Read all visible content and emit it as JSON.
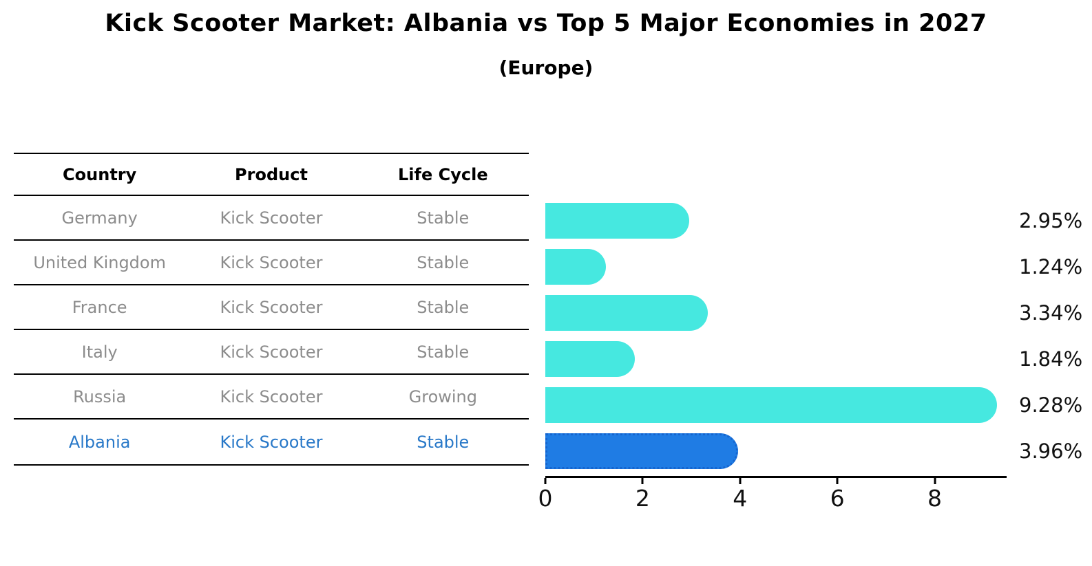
{
  "title": "Kick Scooter Market: Albania vs Top 5 Major Economies in 2027",
  "subtitle": "(Europe)",
  "table": {
    "headers": [
      "Country",
      "Product",
      "Life Cycle"
    ],
    "rows": [
      {
        "country": "Germany",
        "product": "Kick Scooter",
        "life_cycle": "Stable",
        "highlight": false
      },
      {
        "country": "United Kingdom",
        "product": "Kick Scooter",
        "life_cycle": "Stable",
        "highlight": false
      },
      {
        "country": "France",
        "product": "Kick Scooter",
        "life_cycle": "Stable",
        "highlight": false
      },
      {
        "country": "Italy",
        "product": "Kick Scooter",
        "life_cycle": "Stable",
        "highlight": false
      },
      {
        "country": "Russia",
        "product": "Kick Scooter",
        "life_cycle": "Growing",
        "highlight": false
      },
      {
        "country": "Albania",
        "product": "Kick Scooter",
        "life_cycle": "Stable",
        "highlight": true
      }
    ]
  },
  "chart_data": {
    "type": "bar",
    "orientation": "horizontal",
    "title": "Kick Scooter Market: Albania vs Top 5 Major Economies in 2027",
    "subtitle": "(Europe)",
    "categories": [
      "Germany",
      "United Kingdom",
      "France",
      "Italy",
      "Russia",
      "Albania"
    ],
    "values": [
      2.95,
      1.24,
      3.34,
      1.84,
      9.28,
      3.96
    ],
    "value_labels": [
      "2.95%",
      "1.24%",
      "3.34%",
      "1.84%",
      "9.28%",
      "3.96%"
    ],
    "unit": "%",
    "xlim": [
      0,
      9.45
    ],
    "xticks": [
      0,
      2,
      4,
      6,
      8
    ],
    "grid": false,
    "legend": false,
    "highlight_index": 5,
    "bar_color": "#46e8e0",
    "highlight_bar_color": "#1f7ce4",
    "highlight_border_color": "#1565cf"
  },
  "colors": {
    "title_text": "#000000",
    "table_text": "#8c8c8c",
    "highlight_text": "#2878c8",
    "axis": "#000000"
  }
}
